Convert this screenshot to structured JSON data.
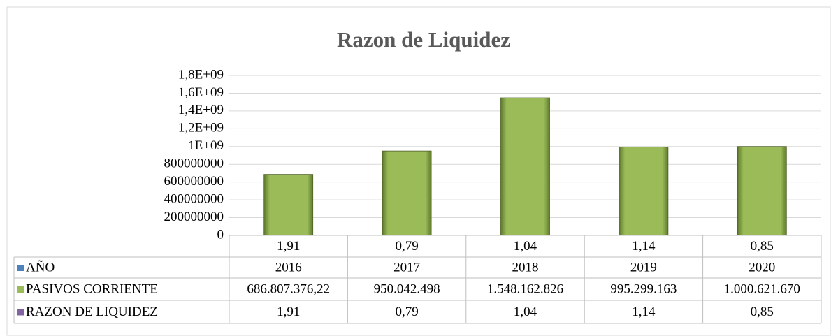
{
  "chart_data": {
    "type": "bar",
    "title": "Razon de Liquidez",
    "categories": [
      "1,91",
      "0,79",
      "1,04",
      "1,14",
      "0,85"
    ],
    "series": [
      {
        "name": "AÑO",
        "color": "#4f81bd",
        "values": [
          2016,
          2017,
          2018,
          2019,
          2020
        ]
      },
      {
        "name": "PASIVOS CORRIENTE",
        "color": "#9bbb59",
        "values": [
          686807376.22,
          950042498,
          1548162826,
          995299163,
          1000621670
        ],
        "value_labels": [
          "686.807.376,22",
          "950.042.498",
          "1.548.162.826",
          "995.299.163",
          "1.000.621.670"
        ]
      },
      {
        "name": "RAZON DE LIQUIDEZ",
        "color": "#8064a2",
        "values": [
          1.91,
          0.79,
          1.04,
          1.14,
          0.85
        ],
        "value_labels": [
          "1,91",
          "0,79",
          "1,04",
          "1,14",
          "0,85"
        ]
      }
    ],
    "ylim": [
      0,
      1800000000
    ],
    "yticks": [
      0,
      200000000,
      400000000,
      600000000,
      800000000,
      {
        "value": 1000000000,
        "label": "1E+09"
      },
      {
        "value": 1200000000,
        "label": "1,2E+09"
      },
      {
        "value": 1400000000,
        "label": "1,4E+09"
      },
      {
        "value": 1600000000,
        "label": "1,6E+09"
      },
      {
        "value": 1800000000,
        "label": "1,8E+09"
      }
    ],
    "grid": true
  }
}
